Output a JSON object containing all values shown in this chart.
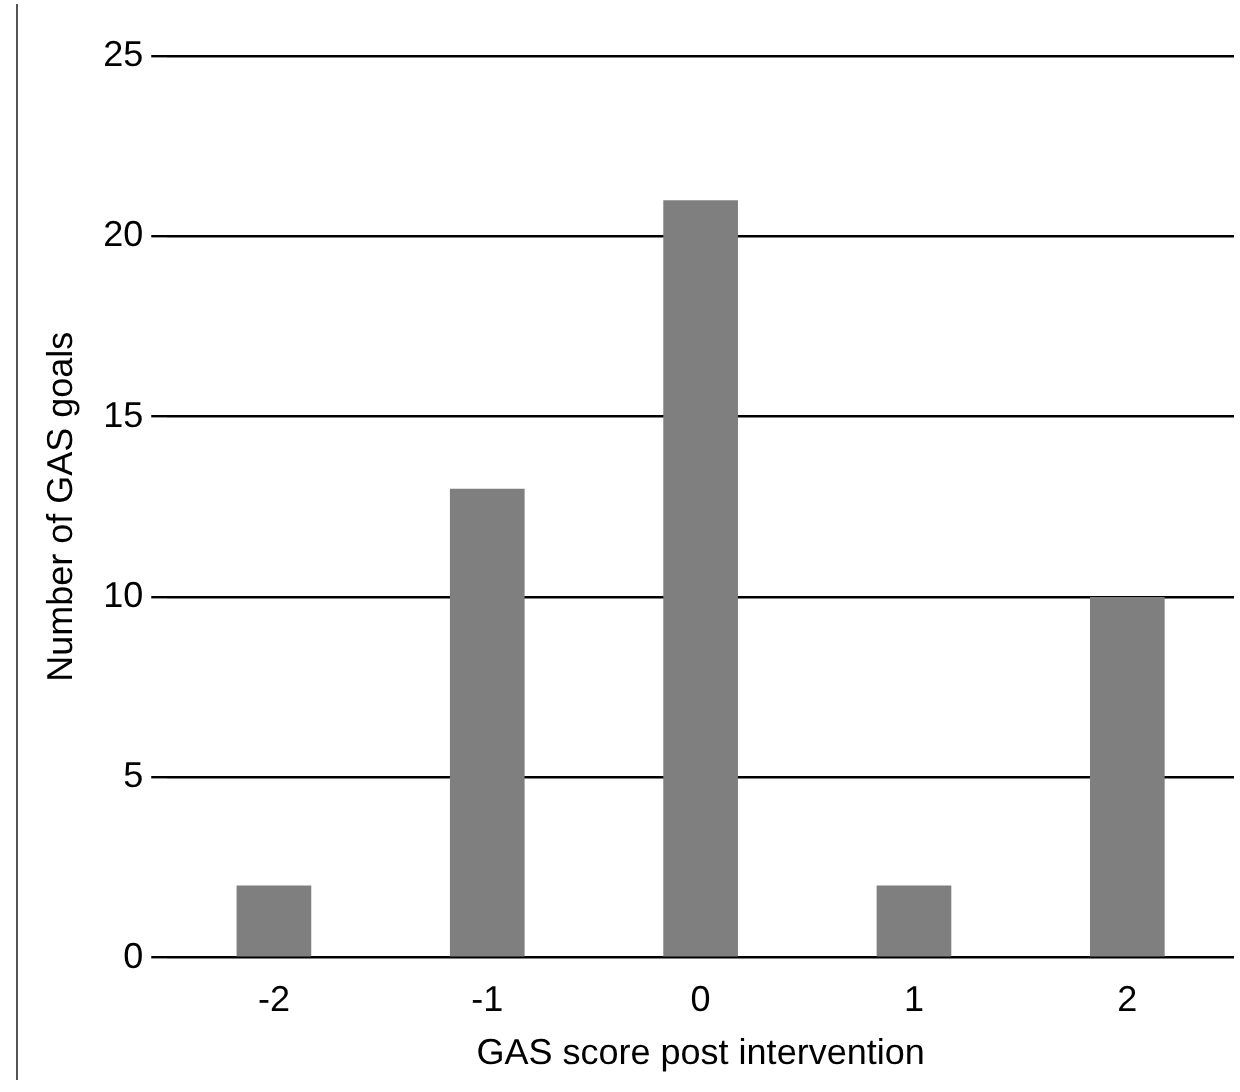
{
  "chart_data": {
    "type": "bar",
    "xlabel": "GAS score post intervention",
    "ylabel": "Number of GAS goals",
    "categories": [
      "-2",
      "-1",
      "0",
      "1",
      "2"
    ],
    "values": [
      2,
      13,
      21,
      2,
      10
    ],
    "color": "#7f7f7f",
    "ylim": [
      0,
      25
    ],
    "yticks": [
      0,
      5,
      10,
      15,
      20,
      25
    ],
    "grid": "y",
    "legend": false
  }
}
